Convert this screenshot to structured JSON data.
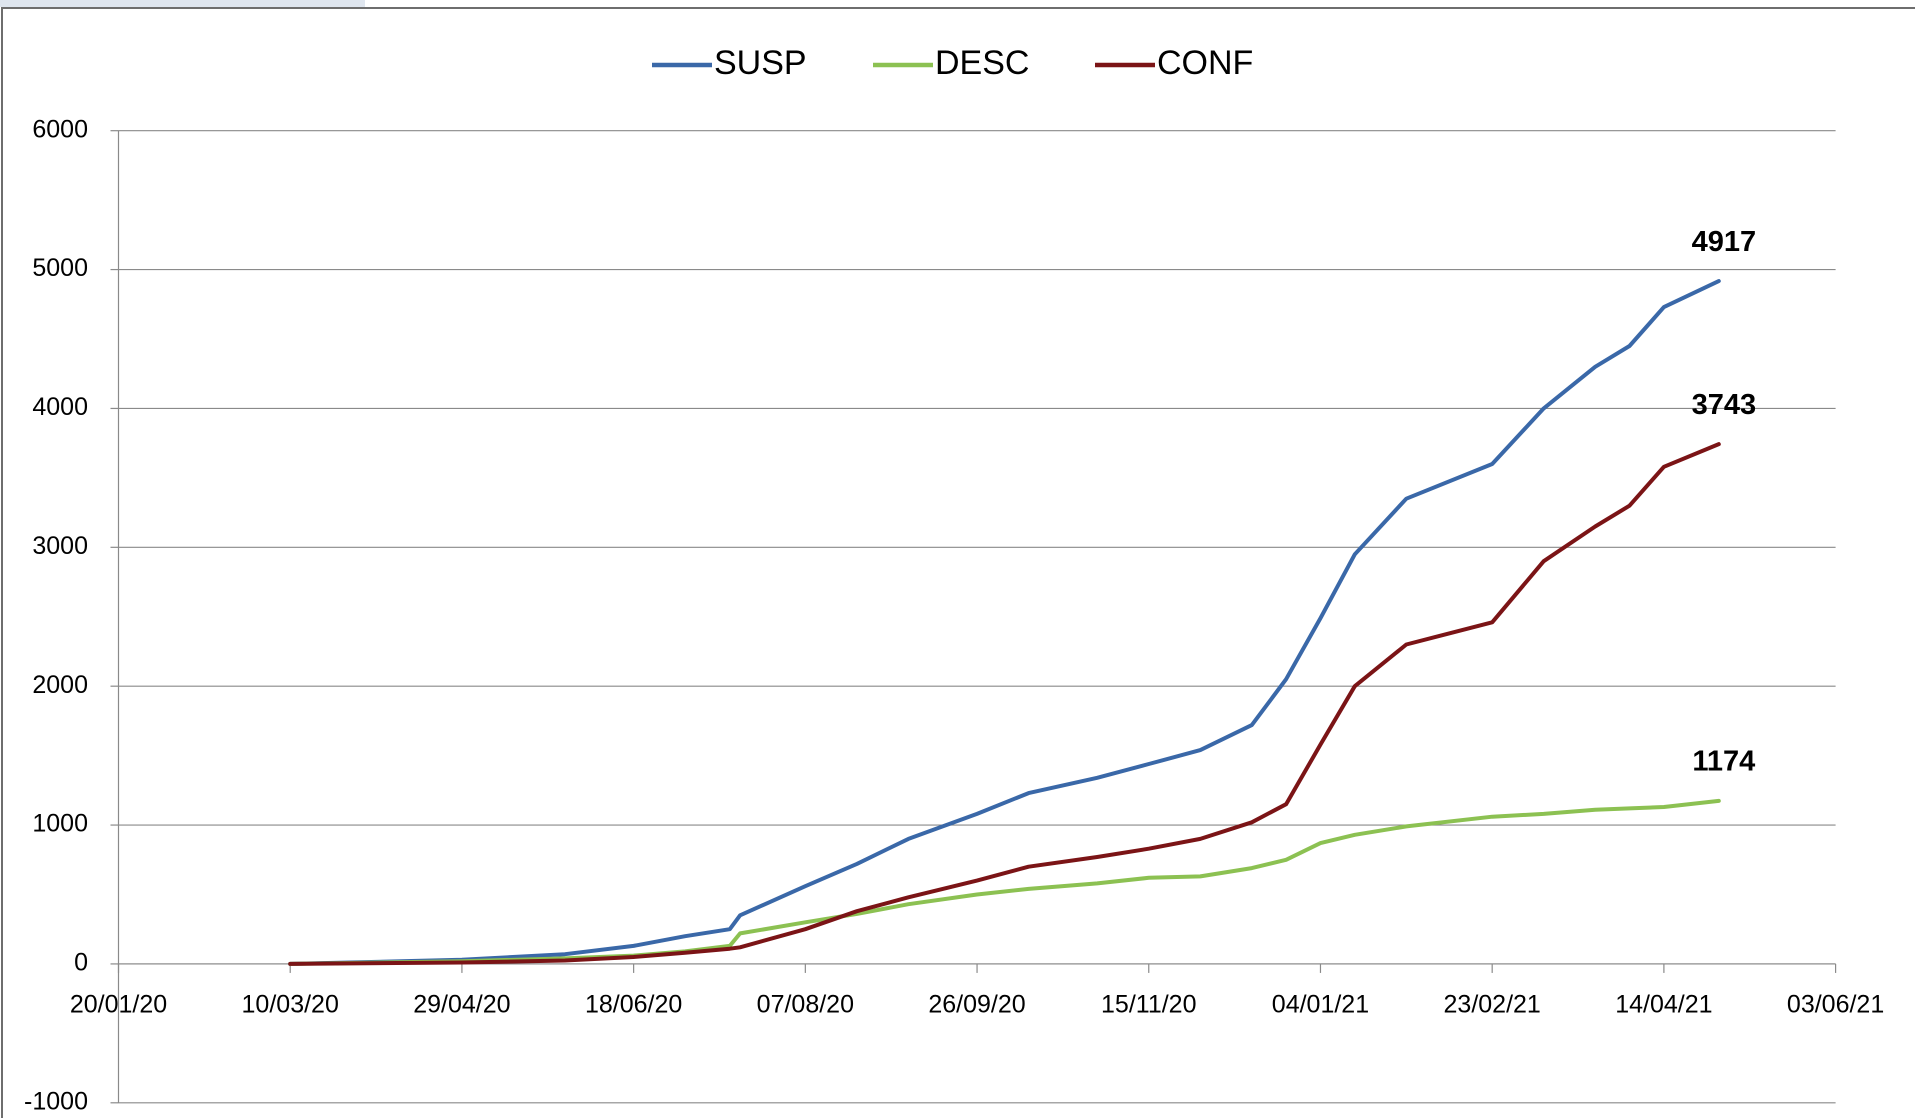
{
  "chart_data": {
    "type": "line",
    "x": [
      "10/03/20",
      "29/04/20",
      "29/05/20",
      "18/06/20",
      "03/07/20",
      "16/07/20",
      "19/07/20",
      "07/08/20",
      "22/08/20",
      "06/09/20",
      "26/09/20",
      "11/10/20",
      "31/10/20",
      "15/11/20",
      "30/11/20",
      "15/12/20",
      "25/12/20",
      "04/01/21",
      "14/01/21",
      "29/01/21",
      "23/02/21",
      "10/03/21",
      "25/03/21",
      "04/04/21",
      "14/04/21",
      "30/04/21"
    ],
    "series": [
      {
        "name": "SUSP",
        "color": "#3a68a8",
        "label_color": "#4a7ebb",
        "values": [
          0,
          30,
          70,
          130,
          200,
          250,
          350,
          560,
          720,
          900,
          1080,
          1230,
          1340,
          1440,
          1540,
          1720,
          2050,
          2490,
          2950,
          3350,
          3600,
          4000,
          4300,
          4450,
          4730,
          4917
        ]
      },
      {
        "name": "DESC",
        "color": "#8cc152",
        "label_color": "#5e8a2a",
        "values": [
          0,
          20,
          40,
          60,
          90,
          130,
          220,
          300,
          360,
          430,
          500,
          540,
          580,
          620,
          630,
          690,
          750,
          870,
          930,
          990,
          1060,
          1080,
          1110,
          1120,
          1130,
          1174
        ]
      },
      {
        "name": "CONF",
        "color": "#7b1416",
        "label_color": "#4d1010",
        "values": [
          0,
          10,
          25,
          50,
          80,
          110,
          120,
          250,
          380,
          480,
          600,
          700,
          770,
          830,
          900,
          1020,
          1150,
          1580,
          2000,
          2300,
          2460,
          2900,
          3150,
          3300,
          3580,
          3743
        ]
      }
    ],
    "xlim": [
      "20/01/20",
      "03/06/21"
    ],
    "xticks": [
      "20/01/20",
      "10/03/20",
      "29/04/20",
      "18/06/20",
      "07/08/20",
      "26/09/20",
      "15/11/20",
      "04/01/21",
      "23/02/21",
      "14/04/21",
      "03/06/21"
    ],
    "ylim": [
      -1000,
      6000
    ],
    "yticks": [
      -1000,
      0,
      1000,
      2000,
      3000,
      4000,
      5000,
      6000
    ],
    "grid": true,
    "legend": "top"
  }
}
